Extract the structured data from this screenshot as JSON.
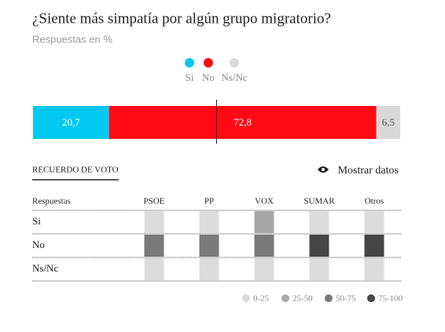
{
  "chart_data": {
    "type": "stacked-bar",
    "title": "¿Siente más simpatía por algún grupo migratorio?",
    "subtitle": "Respuestas en %",
    "xlim": [
      0,
      100
    ],
    "series": [
      {
        "name": "Si",
        "color": "#00c8f0",
        "values": [
          20.7
        ],
        "value_labels": [
          "20,7"
        ]
      },
      {
        "name": "No",
        "color": "#ff0a14",
        "values": [
          72.8
        ],
        "value_labels": [
          "72,8"
        ]
      },
      {
        "name": "Ns/Nc",
        "color": "#d9d9d9",
        "values": [
          6.5
        ],
        "value_labels": [
          "6,5"
        ]
      }
    ],
    "marker": 50
  },
  "table": {
    "tab": "RECUERDO DE VOTO",
    "toggle": "Mostrar datos",
    "header": [
      "Respuestas",
      "PSOE",
      "PP",
      "VOX",
      "SUMAR",
      "Otros"
    ],
    "rows": [
      {
        "label": "Si",
        "values": [
          15,
          12,
          30,
          10,
          12
        ]
      },
      {
        "label": "No",
        "values": [
          70,
          72,
          60,
          80,
          78
        ]
      },
      {
        "label": "Ns/Nc",
        "values": [
          15,
          16,
          10,
          10,
          10
        ]
      }
    ],
    "buckets": [
      {
        "label": "0-25",
        "from": 0,
        "to": 25,
        "color": "#dcdcdc"
      },
      {
        "label": "25-50",
        "from": 25,
        "to": 50,
        "color": "#a8a8a8"
      },
      {
        "label": "50-75",
        "from": 50,
        "to": 75,
        "color": "#7a7a7a"
      },
      {
        "label": "75-100",
        "from": 75,
        "to": 100,
        "color": "#454545"
      }
    ]
  }
}
